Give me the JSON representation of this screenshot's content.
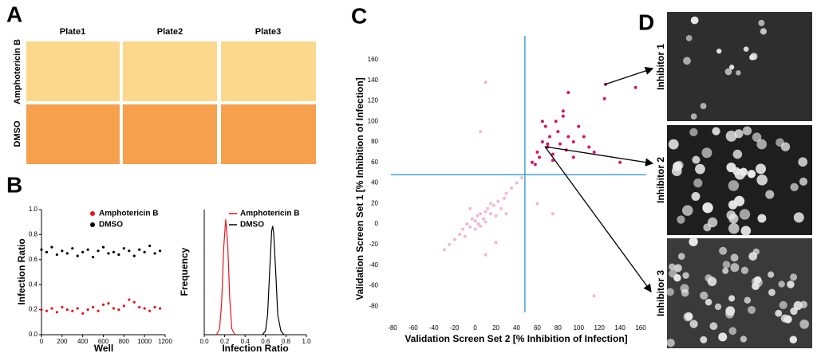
{
  "panels": {
    "A": {
      "label": "A",
      "columns": [
        "Plate1",
        "Plate2",
        "Plate3"
      ],
      "rows": [
        "Amphotericin B",
        "DMSO"
      ]
    },
    "B": {
      "label": "B"
    },
    "C": {
      "label": "C"
    },
    "D": {
      "label": "D",
      "images": [
        "Inhibitor 1",
        "Inhibitor 2",
        "Inhibitor 3"
      ]
    }
  },
  "chart_data": [
    {
      "type": "scatter",
      "xlabel": "Well",
      "ylabel": "Infection Ratio",
      "x": [
        0,
        50,
        100,
        150,
        200,
        250,
        300,
        350,
        400,
        450,
        500,
        550,
        600,
        650,
        700,
        750,
        800,
        850,
        900,
        950,
        1000,
        1050,
        1100,
        1150
      ],
      "series": [
        {
          "name": "Amphotericin B",
          "color": "#e8141b",
          "values": [
            0.2,
            0.19,
            0.21,
            0.18,
            0.22,
            0.2,
            0.19,
            0.21,
            0.17,
            0.2,
            0.22,
            0.19,
            0.24,
            0.25,
            0.21,
            0.2,
            0.23,
            0.28,
            0.26,
            0.22,
            0.21,
            0.19,
            0.22,
            0.21
          ]
        },
        {
          "name": "DMSO",
          "color": "#000000",
          "values": [
            0.68,
            0.66,
            0.7,
            0.64,
            0.67,
            0.65,
            0.69,
            0.63,
            0.66,
            0.68,
            0.62,
            0.67,
            0.7,
            0.65,
            0.66,
            0.64,
            0.69,
            0.67,
            0.63,
            0.68,
            0.66,
            0.71,
            0.65,
            0.67
          ]
        }
      ],
      "xlim": [
        0,
        1200
      ],
      "xticks": [
        0,
        200,
        400,
        600,
        800,
        1000,
        1200
      ],
      "ylim": [
        0,
        1
      ],
      "yticks": [
        {
          "value": 0,
          "label": "0.0"
        },
        0.2,
        0.4,
        0.6,
        0.8,
        {
          "value": 1,
          "label": "1.0"
        }
      ],
      "legend": "upper right"
    },
    {
      "type": "line",
      "xlabel": "Infection Ratio",
      "ylabel": "Frequency",
      "series": [
        {
          "name": "Amphotericin B",
          "color": "#e8141b",
          "x": [
            0.12,
            0.15,
            0.17,
            0.19,
            0.21,
            0.23,
            0.25,
            0.27,
            0.3
          ],
          "values": [
            0,
            15,
            80,
            220,
            295,
            230,
            90,
            15,
            0
          ]
        },
        {
          "name": "DMSO",
          "color": "#000000",
          "x": [
            0.57,
            0.6,
            0.62,
            0.64,
            0.66,
            0.67,
            0.68,
            0.7,
            0.72,
            0.75,
            0.78
          ],
          "values": [
            0,
            10,
            50,
            160,
            265,
            278,
            260,
            160,
            50,
            10,
            0
          ]
        }
      ],
      "xlim": [
        0,
        1
      ],
      "xticks": [
        {
          "value": 0,
          "label": "0.0"
        },
        0.2,
        0.4,
        0.6,
        0.8,
        {
          "value": 1,
          "label": "1.0"
        }
      ],
      "ylim": [
        0,
        320
      ],
      "legend": "upper right"
    },
    {
      "type": "scatter",
      "xlabel": "Validation Screen Set 2 [% Inhibition of Infection]",
      "ylabel": "Validation Screen Set 1 [% Inhibition of Infection]",
      "series": [
        {
          "color": "#f4b6d2",
          "x": [
            -25,
            -20,
            -15,
            -12,
            -10,
            -8,
            -5,
            -3,
            0,
            0,
            2,
            3,
            5,
            5,
            8,
            10,
            10,
            12,
            15,
            15,
            18,
            20,
            22,
            25,
            28,
            30,
            35,
            -30,
            40,
            45,
            5,
            10,
            60,
            -5,
            20,
            30,
            55,
            10,
            115,
            75
          ],
          "values": [
            -20,
            -15,
            -10,
            -5,
            -12,
            0,
            -3,
            5,
            -5,
            3,
            8,
            0,
            10,
            -2,
            5,
            12,
            2,
            15,
            10,
            20,
            18,
            8,
            22,
            15,
            25,
            30,
            35,
            -25,
            40,
            45,
            90,
            138,
            20,
            15,
            -18,
            10,
            60,
            -30,
            -70,
            10
          ]
        },
        {
          "color": "#d6156b",
          "x": [
            55,
            60,
            62,
            65,
            68,
            70,
            72,
            75,
            78,
            80,
            82,
            85,
            88,
            90,
            95,
            100,
            105,
            110,
            115,
            125,
            126,
            140,
            155,
            65,
            75,
            85,
            95,
            58,
            70,
            90
          ],
          "values": [
            60,
            70,
            65,
            80,
            95,
            75,
            85,
            68,
            100,
            90,
            78,
            110,
            72,
            128,
            80,
            95,
            85,
            75,
            70,
            122,
            136,
            60,
            133,
            100,
            62,
            105,
            65,
            58,
            78,
            85
          ]
        }
      ],
      "xlim": [
        -90,
        170
      ],
      "xticks": [
        -80,
        -60,
        -40,
        -20,
        0,
        20,
        40,
        60,
        80,
        100,
        120,
        140,
        160
      ],
      "ylim": [
        -100,
        170
      ],
      "yticks": [
        -80,
        -60,
        -40,
        -20,
        0,
        20,
        40,
        60,
        80,
        100,
        120,
        140,
        160
      ],
      "vline": 48,
      "hline": 48,
      "line_color": "#4a9fd4"
    }
  ]
}
